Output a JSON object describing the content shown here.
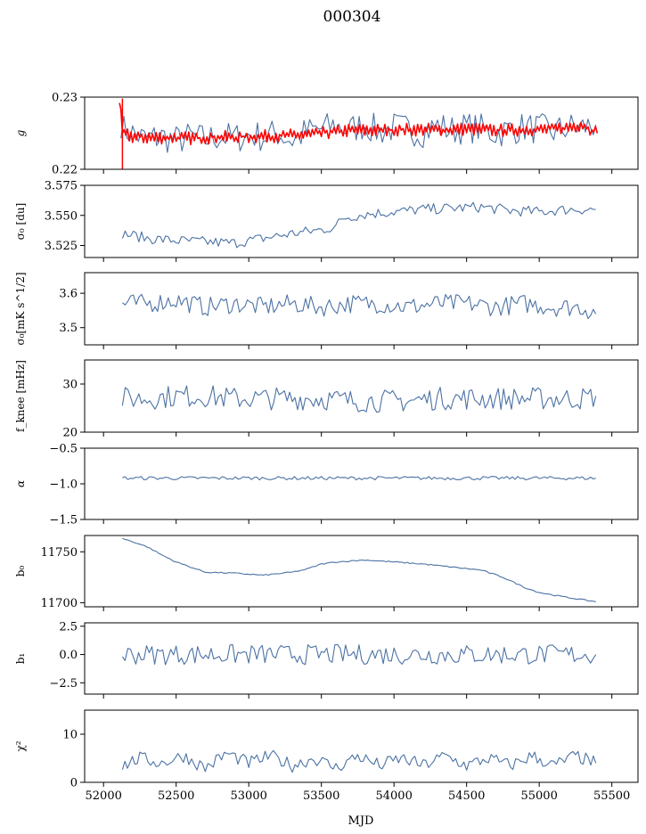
{
  "figure": {
    "title": "000304",
    "xlabel": "MJD"
  },
  "colors": {
    "series": "#4c72a4",
    "fit": "#ff0000",
    "axis": "#000000"
  },
  "chart_data": [
    {
      "id": "g",
      "type": "line",
      "ylabel": "g",
      "ylim": [
        0.22,
        0.23
      ],
      "yticks": [
        0.22,
        0.23
      ],
      "ytick_labels": [
        "0.22",
        "0.23"
      ],
      "xlim": [
        51870,
        55680
      ],
      "series": [
        {
          "color": "#4c72a4",
          "points": [
            [
              52120,
              0.2265
            ],
            [
              52140,
              0.2255
            ],
            [
              52200,
              0.225
            ],
            [
              52280,
              0.2242
            ],
            [
              52400,
              0.2245
            ],
            [
              52500,
              0.224
            ],
            [
              52600,
              0.2245
            ],
            [
              52700,
              0.2241
            ],
            [
              52800,
              0.2246
            ],
            [
              52900,
              0.2243
            ],
            [
              53000,
              0.2248
            ],
            [
              53100,
              0.2245
            ],
            [
              53200,
              0.225
            ],
            [
              53300,
              0.224
            ],
            [
              53400,
              0.2252
            ],
            [
              53500,
              0.2256
            ],
            [
              53600,
              0.226
            ],
            [
              53700,
              0.2255
            ],
            [
              53800,
              0.2262
            ],
            [
              53900,
              0.2252
            ],
            [
              54000,
              0.2258
            ],
            [
              54100,
              0.2255
            ],
            [
              54200,
              0.2252
            ],
            [
              54300,
              0.226
            ],
            [
              54400,
              0.2254
            ],
            [
              54500,
              0.2258
            ],
            [
              54600,
              0.2256
            ],
            [
              54700,
              0.225
            ],
            [
              54800,
              0.2255
            ],
            [
              54900,
              0.2258
            ],
            [
              55000,
              0.2256
            ],
            [
              55100,
              0.2252
            ],
            [
              55200,
              0.2258
            ],
            [
              55300,
              0.2258
            ],
            [
              55390,
              0.2262
            ]
          ]
        },
        {
          "color": "#ff0000",
          "points": [
            [
              52110,
              0.2298
            ],
            [
              52130,
              0.225
            ],
            [
              52200,
              0.2245
            ],
            [
              52300,
              0.2244
            ],
            [
              52400,
              0.2244
            ],
            [
              52500,
              0.2244
            ],
            [
              52600,
              0.2243
            ],
            [
              52700,
              0.2244
            ],
            [
              52800,
              0.2245
            ],
            [
              52900,
              0.2244
            ],
            [
              53000,
              0.2245
            ],
            [
              53100,
              0.2246
            ],
            [
              53200,
              0.2246
            ],
            [
              53300,
              0.2247
            ],
            [
              53400,
              0.2248
            ],
            [
              53500,
              0.225
            ],
            [
              53600,
              0.2252
            ],
            [
              53700,
              0.2254
            ],
            [
              53800,
              0.2254
            ],
            [
              53900,
              0.2254
            ],
            [
              54000,
              0.2255
            ],
            [
              54100,
              0.2255
            ],
            [
              54200,
              0.2255
            ],
            [
              54300,
              0.2255
            ],
            [
              54400,
              0.2255
            ],
            [
              54500,
              0.2256
            ],
            [
              54600,
              0.2255
            ],
            [
              54700,
              0.2254
            ],
            [
              54800,
              0.2254
            ],
            [
              54900,
              0.2255
            ],
            [
              55000,
              0.2255
            ],
            [
              55100,
              0.2256
            ],
            [
              55200,
              0.2258
            ],
            [
              55300,
              0.2262
            ],
            [
              55400,
              0.225
            ]
          ]
        }
      ]
    },
    {
      "id": "sigma0_du",
      "type": "line",
      "ylabel": "σ₀ [du]",
      "ylim": [
        3.515,
        3.575
      ],
      "yticks": [
        3.525,
        3.55,
        3.575
      ],
      "ytick_labels": [
        "3.525",
        "3.550",
        "3.575"
      ],
      "xlim": [
        51870,
        55680
      ],
      "series": [
        {
          "color": "#4c72a4",
          "points": [
            [
              52130,
              3.535
            ],
            [
              52300,
              3.531
            ],
            [
              52500,
              3.529
            ],
            [
              52700,
              3.528
            ],
            [
              52900,
              3.527
            ],
            [
              53100,
              3.531
            ],
            [
              53300,
              3.535
            ],
            [
              53500,
              3.538
            ],
            [
              53600,
              3.541
            ],
            [
              53650,
              3.548
            ],
            [
              53800,
              3.551
            ],
            [
              54000,
              3.553
            ],
            [
              54200,
              3.555
            ],
            [
              54400,
              3.556
            ],
            [
              54600,
              3.557
            ],
            [
              54800,
              3.554
            ],
            [
              55000,
              3.553
            ],
            [
              55200,
              3.555
            ],
            [
              55390,
              3.555
            ]
          ]
        }
      ]
    },
    {
      "id": "sigma0_mK",
      "type": "line",
      "ylabel": "σ₀[mK s^1/2]",
      "ylim": [
        3.45,
        3.66
      ],
      "yticks": [
        3.5,
        3.6
      ],
      "ytick_labels": [
        "3.5",
        "3.6"
      ],
      "xlim": [
        51870,
        55680
      ],
      "series": [
        {
          "color": "#4c72a4",
          "points": [
            [
              52130,
              3.57
            ],
            [
              52300,
              3.57
            ],
            [
              52500,
              3.58
            ],
            [
              52700,
              3.56
            ],
            [
              52900,
              3.57
            ],
            [
              53100,
              3.56
            ],
            [
              53300,
              3.57
            ],
            [
              53500,
              3.56
            ],
            [
              53700,
              3.57
            ],
            [
              53900,
              3.57
            ],
            [
              54100,
              3.56
            ],
            [
              54300,
              3.57
            ],
            [
              54500,
              3.57
            ],
            [
              54700,
              3.56
            ],
            [
              54900,
              3.57
            ],
            [
              55100,
              3.56
            ],
            [
              55300,
              3.56
            ],
            [
              55390,
              3.54
            ]
          ]
        }
      ]
    },
    {
      "id": "fknee",
      "type": "line",
      "ylabel": "f_knee [mHz]",
      "ylim": [
        20,
        35
      ],
      "yticks": [
        20,
        30
      ],
      "ytick_labels": [
        "20",
        "30"
      ],
      "xlim": [
        51870,
        55680
      ],
      "series": [
        {
          "color": "#4c72a4",
          "points": [
            [
              52130,
              27
            ],
            [
              52300,
              27
            ],
            [
              52500,
              27.5
            ],
            [
              52700,
              27.5
            ],
            [
              52900,
              27
            ],
            [
              53100,
              27
            ],
            [
              53300,
              27
            ],
            [
              53500,
              27
            ],
            [
              53700,
              26.5
            ],
            [
              53900,
              26.5
            ],
            [
              54100,
              26.5
            ],
            [
              54300,
              27
            ],
            [
              54500,
              27
            ],
            [
              54700,
              27
            ],
            [
              54900,
              27
            ],
            [
              55100,
              27
            ],
            [
              55300,
              27
            ],
            [
              55390,
              27.5
            ]
          ]
        }
      ]
    },
    {
      "id": "alpha",
      "type": "line",
      "ylabel": "α",
      "ylim": [
        -1.5,
        -0.5
      ],
      "yticks": [
        -1.5,
        -1.0,
        -0.5
      ],
      "ytick_labels": [
        "−1.5",
        "−1.0",
        "−0.5"
      ],
      "xlim": [
        51870,
        55680
      ],
      "series": [
        {
          "color": "#4c72a4",
          "points": [
            [
              52130,
              -0.92
            ],
            [
              52500,
              -0.92
            ],
            [
              53000,
              -0.92
            ],
            [
              53500,
              -0.92
            ],
            [
              54000,
              -0.92
            ],
            [
              54500,
              -0.92
            ],
            [
              55000,
              -0.92
            ],
            [
              55390,
              -0.92
            ]
          ]
        }
      ]
    },
    {
      "id": "b0",
      "type": "line",
      "ylabel": "b₀",
      "ylim": [
        11696,
        11766
      ],
      "yticks": [
        11700,
        11750
      ],
      "ytick_labels": [
        "11700",
        "11750"
      ],
      "xlim": [
        51870,
        55680
      ],
      "series": [
        {
          "color": "#4c72a4",
          "points": [
            [
              52130,
              11763
            ],
            [
              52200,
              11760
            ],
            [
              52300,
              11755
            ],
            [
              52400,
              11747
            ],
            [
              52500,
              11740
            ],
            [
              52600,
              11735
            ],
            [
              52700,
              11730
            ],
            [
              52900,
              11729
            ],
            [
              53100,
              11727
            ],
            [
              53300,
              11730
            ],
            [
              53400,
              11733
            ],
            [
              53500,
              11738
            ],
            [
              53600,
              11740
            ],
            [
              53800,
              11742
            ],
            [
              54000,
              11740
            ],
            [
              54200,
              11738
            ],
            [
              54400,
              11735
            ],
            [
              54600,
              11732
            ],
            [
              54750,
              11725
            ],
            [
              54900,
              11715
            ],
            [
              55000,
              11710
            ],
            [
              55200,
              11705
            ],
            [
              55390,
              11701
            ]
          ]
        }
      ]
    },
    {
      "id": "b1",
      "type": "line",
      "ylabel": "b₁",
      "ylim": [
        -3.5,
        2.8
      ],
      "yticks": [
        -2.5,
        0.0,
        2.5
      ],
      "ytick_labels": [
        "−2.5",
        "0.0",
        "2.5"
      ],
      "xlim": [
        51870,
        55680
      ],
      "series": [
        {
          "color": "#4c72a4",
          "points": [
            [
              52130,
              0
            ],
            [
              52500,
              0
            ],
            [
              53000,
              0
            ],
            [
              53500,
              0
            ],
            [
              54000,
              0
            ],
            [
              54500,
              0
            ],
            [
              55000,
              0
            ],
            [
              55390,
              0
            ]
          ]
        }
      ]
    },
    {
      "id": "chi2",
      "type": "line",
      "ylabel": "χ²",
      "ylim": [
        0,
        15
      ],
      "yticks": [
        0,
        10
      ],
      "ytick_labels": [
        "0",
        "10"
      ],
      "xlim": [
        51870,
        55680
      ],
      "xticks": [
        52000,
        52500,
        53000,
        53500,
        54000,
        54500,
        55000,
        55500
      ],
      "xtick_labels": [
        "52000",
        "52500",
        "53000",
        "53500",
        "54000",
        "54500",
        "55000",
        "55500"
      ],
      "series": [
        {
          "color": "#4c72a4",
          "points": [
            [
              52130,
              3.5
            ],
            [
              52250,
              5
            ],
            [
              52400,
              4
            ],
            [
              52550,
              5.5
            ],
            [
              52700,
              3
            ],
            [
              52850,
              6
            ],
            [
              53000,
              4
            ],
            [
              53150,
              5.5
            ],
            [
              53300,
              3.5
            ],
            [
              53450,
              5
            ],
            [
              53600,
              3
            ],
            [
              53750,
              5.5
            ],
            [
              53900,
              3.5
            ],
            [
              54050,
              5
            ],
            [
              54200,
              3.5
            ],
            [
              54350,
              5.5
            ],
            [
              54500,
              3.5
            ],
            [
              54650,
              5
            ],
            [
              54800,
              3.5
            ],
            [
              54950,
              5.5
            ],
            [
              55100,
              3.5
            ],
            [
              55250,
              5.5
            ],
            [
              55390,
              4
            ]
          ]
        }
      ]
    }
  ]
}
